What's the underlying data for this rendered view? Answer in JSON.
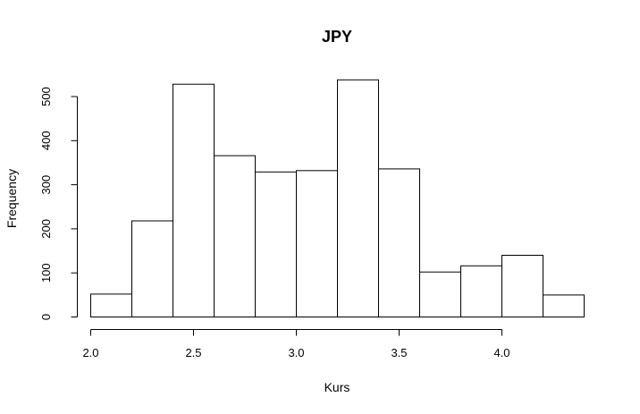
{
  "chart_data": {
    "type": "bar",
    "title": "JPY",
    "xlabel": "Kurs",
    "ylabel": "Frequency",
    "bin_edges": [
      2.0,
      2.2,
      2.4,
      2.6,
      2.8,
      3.0,
      3.2,
      3.4,
      3.6,
      3.8,
      4.0,
      4.2,
      4.4
    ],
    "values": [
      52,
      218,
      528,
      366,
      329,
      332,
      538,
      336,
      102,
      116,
      140,
      50
    ],
    "xlim": [
      2.0,
      4.4
    ],
    "ylim": [
      0,
      540
    ],
    "x_ticks": [
      2.0,
      2.5,
      3.0,
      3.5,
      4.0
    ],
    "x_tick_labels": [
      "2.0",
      "2.5",
      "3.0",
      "3.5",
      "4.0"
    ],
    "y_ticks": [
      0,
      100,
      200,
      300,
      400,
      500
    ],
    "y_tick_labels": [
      "0",
      "100",
      "200",
      "300",
      "400",
      "500"
    ],
    "grid": false,
    "colors": {
      "bar_fill": "#ffffff",
      "bar_stroke": "#000000"
    }
  }
}
